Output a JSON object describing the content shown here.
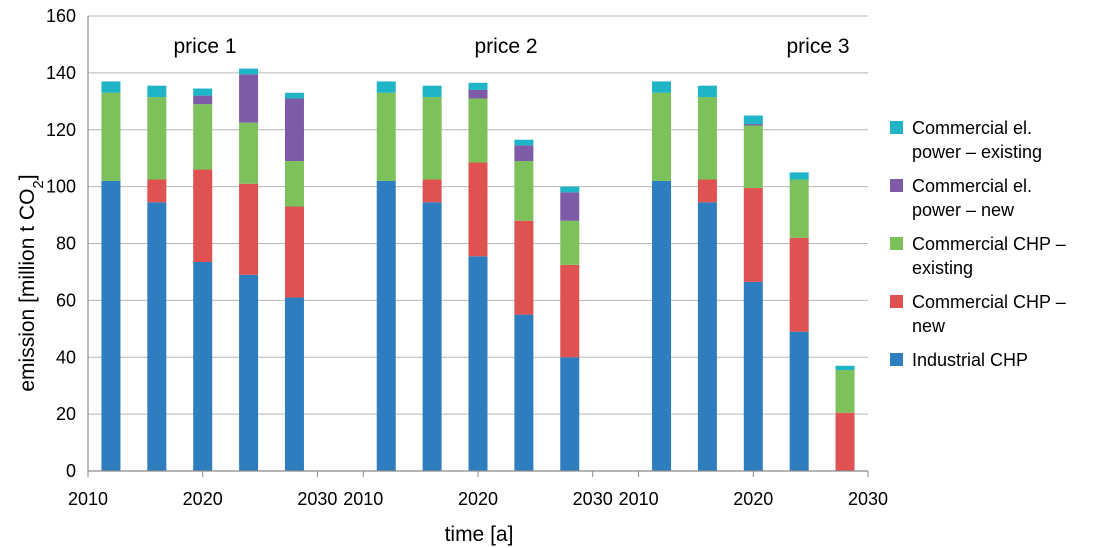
{
  "chart_data": {
    "type": "bar",
    "stacked": true,
    "xlabel": "time [a]",
    "ylabel": "emission [million t CO2]",
    "ylim": [
      0,
      160
    ],
    "yticks": [
      0,
      20,
      40,
      60,
      80,
      100,
      120,
      140,
      160
    ],
    "grid": "horizontal",
    "legend_position": "right",
    "groups": [
      {
        "label": "price 1",
        "years": [
          "2010",
          "2015",
          "2020",
          "2025",
          "2030"
        ],
        "tick_labels": [
          "2010",
          "2020",
          "2030"
        ]
      },
      {
        "label": "price 2",
        "years": [
          "2010",
          "2015",
          "2020",
          "2025",
          "2030"
        ],
        "tick_labels": [
          "2010",
          "2020",
          "2030"
        ]
      },
      {
        "label": "price 3",
        "years": [
          "2010",
          "2015",
          "2020",
          "2025",
          "2030"
        ],
        "tick_labels": [
          "2010",
          "2020",
          "2030"
        ]
      }
    ],
    "series": [
      {
        "name": "Industrial CHP",
        "color": "#2e7ebf",
        "values": [
          [
            102,
            94.5,
            73.5,
            69,
            61
          ],
          [
            102,
            94.5,
            75.5,
            55,
            40
          ],
          [
            102,
            94.5,
            66.5,
            49,
            0
          ]
        ]
      },
      {
        "name": "Commercial CHP –\nnew",
        "color": "#e05252",
        "values": [
          [
            0,
            8,
            32.5,
            32,
            32
          ],
          [
            0,
            8,
            33,
            33,
            32.5
          ],
          [
            0,
            8,
            33,
            33,
            20.5
          ]
        ]
      },
      {
        "name": "Commercial CHP –\nexisting",
        "color": "#7dc15b",
        "values": [
          [
            31,
            29,
            23,
            21.5,
            16
          ],
          [
            31,
            29,
            22.5,
            21,
            15.5
          ],
          [
            31,
            29,
            22,
            20.5,
            15
          ]
        ]
      },
      {
        "name": "Commercial el.\npower – new",
        "color": "#7d5ba6",
        "values": [
          [
            0,
            0,
            3,
            17,
            22
          ],
          [
            0,
            0,
            3,
            5.5,
            10
          ],
          [
            0,
            0,
            0.5,
            0,
            0
          ]
        ]
      },
      {
        "name": "Commercial el.\npower – existing",
        "color": "#1fb5c6",
        "values": [
          [
            4,
            4,
            2.5,
            2,
            2
          ],
          [
            4,
            4,
            2.5,
            2,
            2
          ],
          [
            4,
            4,
            3,
            2.5,
            1.5
          ]
        ]
      }
    ]
  }
}
